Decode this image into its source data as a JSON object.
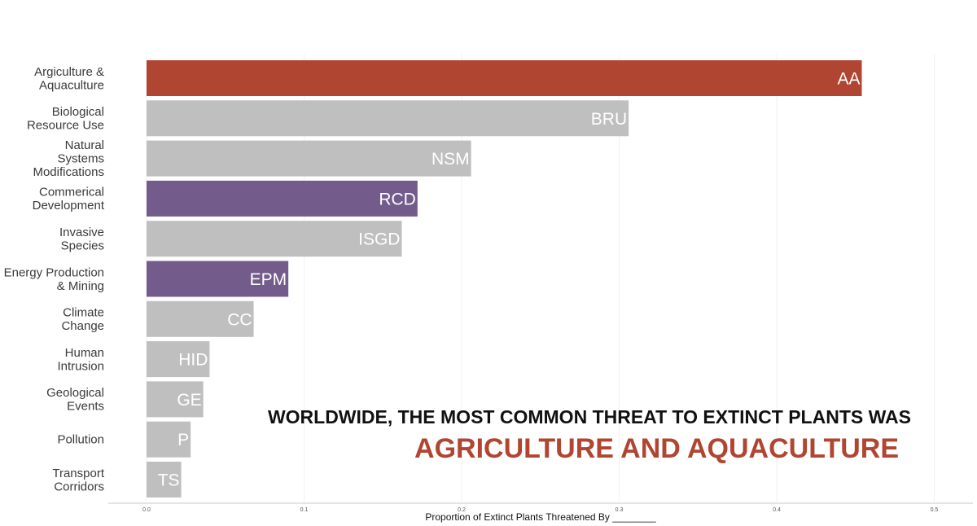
{
  "chart_data": {
    "type": "bar",
    "orientation": "horizontal",
    "title": "",
    "xlabel": "Proportion of Extinct Plants Threatened By ________",
    "ylabel": "",
    "xlim": [
      0,
      0.52
    ],
    "xticks": [
      0.0,
      0.1,
      0.2,
      0.3,
      0.4,
      0.5
    ],
    "xtick_labels": [
      "0.0",
      "0.1",
      "0.2",
      "0.3",
      "0.4",
      "0.5"
    ],
    "grid": "vertical, faint",
    "legend": "none",
    "categories": [
      [
        "Argiculture &",
        "Aquaculture"
      ],
      [
        "Biological",
        "Resource Use"
      ],
      [
        "Natural",
        "Systems",
        "Modifications"
      ],
      [
        "Commerical",
        "Development"
      ],
      [
        "Invasive",
        "Species"
      ],
      [
        "Energy Production",
        "& Mining"
      ],
      [
        "Climate",
        "Change"
      ],
      [
        "Human",
        "Intrusion"
      ],
      [
        "Geological",
        "Events"
      ],
      [
        "Pollution"
      ],
      [
        "Transport",
        "Corridors"
      ]
    ],
    "bar_labels": [
      "AA",
      "BRU",
      "NSM",
      "RCD",
      "ISGD",
      "EPM",
      "CC",
      "HID",
      "GE",
      "P",
      "TS"
    ],
    "values": [
      0.454,
      0.306,
      0.206,
      0.172,
      0.162,
      0.09,
      0.068,
      0.04,
      0.036,
      0.028,
      0.022
    ],
    "bar_colors": [
      "#b04632",
      "#bfbfbf",
      "#bfbfbf",
      "#735b8b",
      "#bfbfbf",
      "#735b8b",
      "#bfbfbf",
      "#bfbfbf",
      "#bfbfbf",
      "#bfbfbf",
      "#bfbfbf"
    ],
    "annotation": {
      "line1": "WORLDWIDE, THE MOST COMMON THREAT TO EXTINCT PLANTS WAS",
      "line2": "AGRICULTURE AND AQUACULTURE",
      "line2_color": "#b04632"
    }
  }
}
